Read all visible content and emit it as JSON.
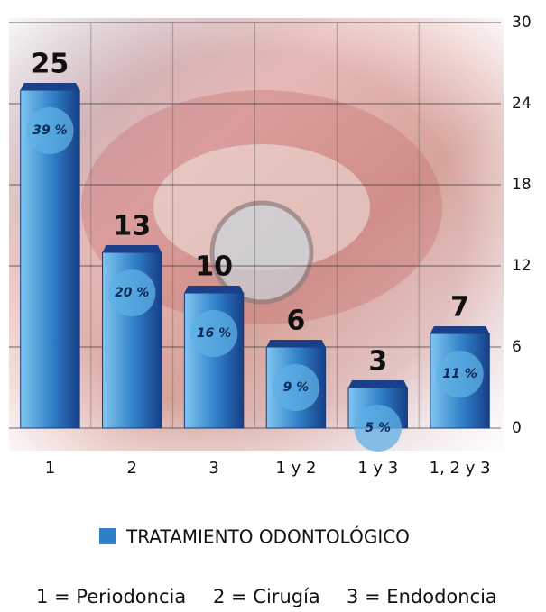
{
  "chart_data": {
    "type": "bar",
    "categories": [
      "1",
      "2",
      "3",
      "1 y 2",
      "1 y 3",
      "1, 2 y 3"
    ],
    "series": [
      {
        "name": "TRATAMIENTO ODONTOLÓGICO",
        "color": "#2f7fc8",
        "values": [
          25,
          13,
          10,
          6,
          3,
          7
        ]
      }
    ],
    "shares": {
      "values": [
        39,
        20,
        16,
        9,
        5,
        11
      ],
      "value_labels": [
        "39 %",
        "20 %",
        "16 %",
        "9 %",
        "5 %",
        "11 %"
      ]
    },
    "ylim": [
      0,
      30
    ],
    "yticks": [
      0,
      6,
      12,
      18,
      24,
      30
    ],
    "grid": true,
    "notes": [
      "1 = Periodoncia",
      "2 = Cirugía",
      "3 = Endodoncia"
    ]
  }
}
